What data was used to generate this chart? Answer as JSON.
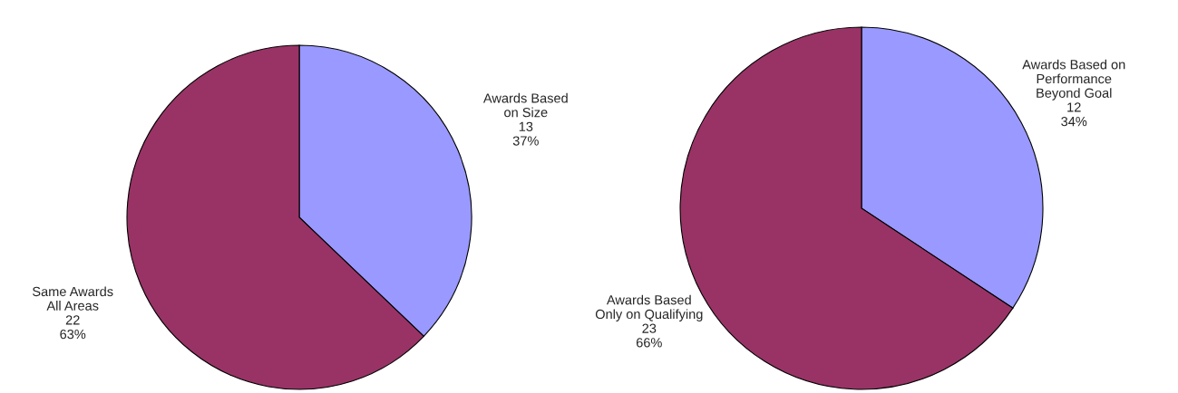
{
  "chart_data": [
    {
      "type": "pie",
      "categories": [
        "Awards Based\non Size",
        "Same Awards\nAll Areas"
      ],
      "values": [
        13,
        22
      ],
      "value_labels": [
        "13\n37%",
        "22\n63%"
      ],
      "colors": [
        "#9999ff",
        "#993366"
      ]
    },
    {
      "type": "pie",
      "categories": [
        "Awards Based on\nPerformance\nBeyond Goal",
        "Awards Based\nOnly on Qualifying"
      ],
      "values": [
        12,
        23
      ],
      "value_labels": [
        "12\n34%",
        "23\n66%"
      ],
      "colors": [
        "#9999ff",
        "#993366"
      ]
    }
  ]
}
